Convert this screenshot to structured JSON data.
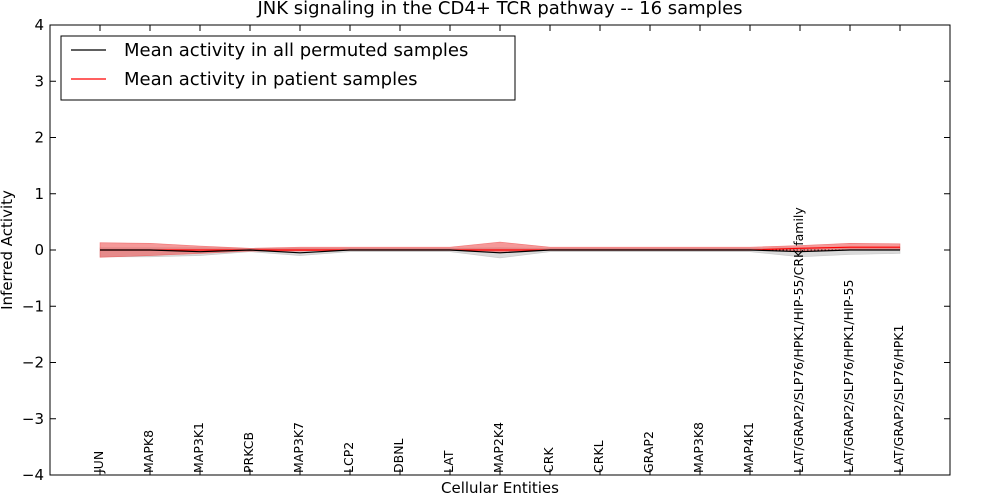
{
  "chart_data": {
    "type": "line",
    "title": "JNK signaling in the CD4+ TCR pathway -- 16 samples",
    "xlabel": "Cellular Entities",
    "ylabel": "Inferred Activity",
    "ylim": [
      -4,
      4
    ],
    "yticks": [
      4,
      3,
      2,
      1,
      0,
      -1,
      -2,
      -3,
      -4
    ],
    "ytick_labels": [
      "4",
      "3",
      "2",
      "1",
      "0",
      "−1",
      "−2",
      "−3",
      "−4"
    ],
    "categories": [
      "JUN",
      "MAPK8",
      "MAP3K1",
      "PRKCB",
      "MAP3K7",
      "LCP2",
      "DBNL",
      "LAT",
      "MAP2K4",
      "CRK",
      "CRKL",
      "GRAP2",
      "MAP3K8",
      "MAP4K1",
      "LAT/GRAP2/SLP76/HPK1/HIP-55/CRK family",
      "LAT/GRAP2/SLP76/HPK1/HIP-55",
      "LAT/GRAP2/SLP76/HPK1"
    ],
    "legend": {
      "location": "top-left",
      "entries": [
        "Mean activity in all permuted samples",
        "Mean activity in patient samples"
      ]
    },
    "series": [
      {
        "name": "Mean activity in all permuted samples",
        "color": "#000000",
        "band_color": "#bbbbbb",
        "values": [
          0.0,
          0.0,
          -0.03,
          0.0,
          -0.05,
          0.0,
          0.0,
          0.0,
          -0.05,
          0.0,
          0.0,
          0.0,
          0.0,
          0.0,
          -0.03,
          0.0,
          0.0
        ],
        "lower": [
          -0.12,
          -0.12,
          -0.1,
          -0.03,
          -0.1,
          -0.03,
          -0.03,
          -0.03,
          -0.14,
          -0.03,
          -0.03,
          -0.03,
          -0.03,
          -0.03,
          -0.12,
          -0.08,
          -0.06
        ],
        "upper": [
          0.04,
          0.04,
          0.04,
          0.03,
          0.03,
          0.03,
          0.03,
          0.03,
          0.04,
          0.03,
          0.03,
          0.03,
          0.03,
          0.03,
          0.04,
          0.05,
          0.05
        ]
      },
      {
        "name": "Mean activity in patient samples",
        "color": "#ff0000",
        "band_color": "#ee5555",
        "values": [
          0.0,
          0.0,
          0.0,
          0.0,
          0.0,
          0.0,
          0.0,
          0.0,
          0.0,
          0.0,
          0.0,
          0.0,
          0.0,
          0.0,
          0.03,
          0.05,
          0.05
        ],
        "lower": [
          -0.13,
          -0.1,
          -0.06,
          -0.02,
          -0.02,
          0.0,
          0.0,
          0.0,
          -0.05,
          0.0,
          0.0,
          0.0,
          0.0,
          0.0,
          -0.02,
          0.0,
          0.0
        ],
        "upper": [
          0.13,
          0.12,
          0.07,
          0.03,
          0.05,
          0.05,
          0.05,
          0.05,
          0.14,
          0.05,
          0.05,
          0.05,
          0.05,
          0.05,
          0.08,
          0.12,
          0.11
        ]
      }
    ]
  }
}
